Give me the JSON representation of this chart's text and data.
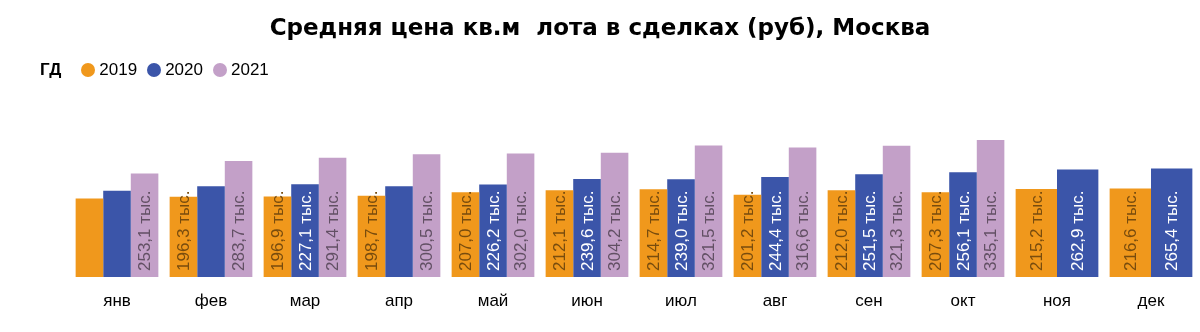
{
  "chart_data": {
    "type": "bar",
    "title": "Средняя цена кв.м  лота в сделках (руб), Москва",
    "legend_title": "ГД",
    "legend": "top left",
    "categories": [
      "янв",
      "фев",
      "мар",
      "апр",
      "май",
      "июн",
      "июл",
      "авг",
      "сен",
      "окт",
      "ноя",
      "дек"
    ],
    "series": [
      {
        "name": "2019",
        "color": "#f0981c",
        "values": [
          192,
          196.3,
          196.9,
          198.7,
          207.0,
          212.1,
          214.7,
          201.2,
          212.0,
          207.3,
          215.2,
          216.6
        ],
        "value_labels": [
          null,
          "196,3 тыс.",
          "196,9 тыс.",
          "198,7 тыс.",
          "207,0 тыс.",
          "212,1 тыс.",
          "214,7 тыс.",
          "201,2 тыс.",
          "212,0 тыс.",
          "207,3 тыс.",
          "215,2 тыс.",
          "216,6 тыс."
        ]
      },
      {
        "name": "2020",
        "color": "#3b55a9",
        "values": [
          211,
          222,
          227.1,
          222,
          226.2,
          239.6,
          239.0,
          244.4,
          251.5,
          256.1,
          262.9,
          265.4
        ],
        "value_labels": [
          null,
          null,
          "227,1 тыс.",
          null,
          "226,2 тыс.",
          "239,6 тыс.",
          "239,0 тыс.",
          "244,4 тыс.",
          "251,5 тыс.",
          "256,1 тыс.",
          "262,9 тыс.",
          "265,4 тыс."
        ]
      },
      {
        "name": "2021",
        "color": "#c3a0c8",
        "values": [
          253.1,
          283.7,
          291.4,
          300.5,
          302.0,
          304.2,
          321.5,
          316.6,
          321.3,
          335.1,
          null,
          null
        ],
        "value_labels": [
          "253,1 тыс.",
          "283,7 тыс.",
          "291,4 тыс.",
          "300,5 тыс.",
          "302,0 тыс.",
          "304,2 тыс.",
          "321,5 тыс.",
          "316,6 тыс.",
          "321,3 тыс.",
          "335,1 тыс.",
          null,
          null
        ]
      }
    ]
  }
}
